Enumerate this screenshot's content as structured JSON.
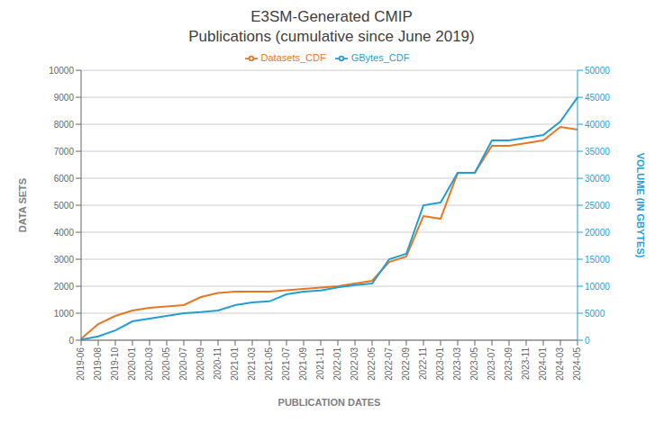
{
  "chart_data": {
    "type": "line",
    "title": "E3SM-Generated CMIP",
    "subtitle": "Publications (cumulative since June 2019)",
    "x_label": "PUBLICATION DATES",
    "y_label": "DATA SETS",
    "y2_label": "VOLUME (IN GBYTES)",
    "categories": [
      "2019-06",
      "2019-08",
      "2019-10",
      "2020-01",
      "2020-03",
      "2020-05",
      "2020-07",
      "2020-09",
      "2020-11",
      "2021-01",
      "2021-03",
      "2021-05",
      "2021-07",
      "2021-09",
      "2021-11",
      "2022-01",
      "2022-03",
      "2022-05",
      "2022-07",
      "2022-09",
      "2022-11",
      "2023-01",
      "2023-03",
      "2023-05",
      "2023-07",
      "2023-09",
      "2023-11",
      "2024-01",
      "2024-03",
      "2024-05"
    ],
    "series": [
      {
        "name": "Datasets_CDF",
        "color": "#E87722",
        "values": [
          50,
          600,
          900,
          1100,
          1200,
          1250,
          1300,
          1600,
          1750,
          1800,
          1800,
          1800,
          1850,
          1900,
          1950,
          2000,
          2100,
          2200,
          2900,
          3100,
          4600,
          4500,
          6200,
          6200,
          7200,
          7200,
          7300,
          7400,
          7900,
          7800
        ]
      },
      {
        "name": "GBytes_CDF",
        "color": "#1F9FD5",
        "axis": "y2",
        "values": [
          100,
          700,
          1800,
          3500,
          4000,
          4500,
          5000,
          5200,
          5500,
          6500,
          7000,
          7200,
          8500,
          9000,
          9200,
          9800,
          10200,
          10500,
          15000,
          16000,
          25000,
          25500,
          31000,
          31000,
          37000,
          37000,
          37500,
          38000,
          40500,
          45000
        ]
      }
    ],
    "ylim": [
      0,
      10000
    ],
    "yticks": [
      0,
      1000,
      2000,
      3000,
      4000,
      5000,
      6000,
      7000,
      8000,
      9000,
      10000
    ],
    "y2lim": [
      0,
      50000
    ],
    "y2ticks": [
      0,
      5000,
      10000,
      15000,
      20000,
      25000,
      30000,
      35000,
      40000,
      45000,
      50000
    ],
    "grid": true,
    "legend": "top"
  }
}
